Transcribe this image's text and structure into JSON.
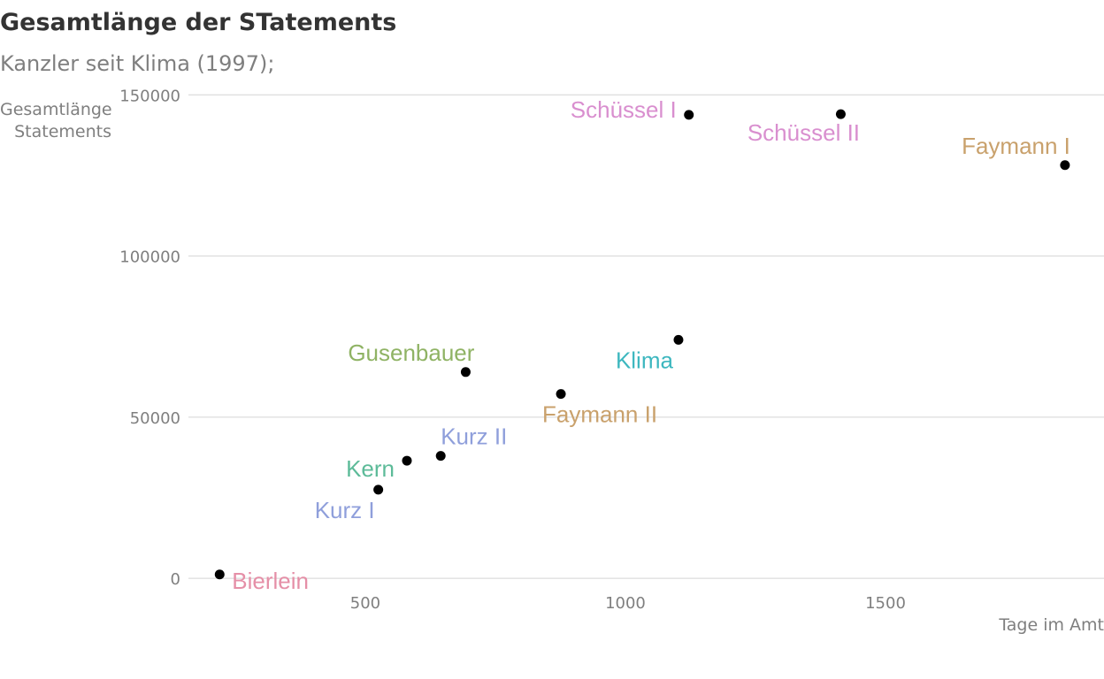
{
  "chart_data": {
    "type": "scatter",
    "title": "Gesamtlänge der STatements",
    "subtitle": "Kanzler seit Klima (1997);",
    "xlabel": "Tage im Amt",
    "ylabel": "Gesamtlänge Statements",
    "xlim": [
      160,
      1920
    ],
    "ylim": [
      -6000,
      152000
    ],
    "x_ticks": [
      500,
      1000,
      1500
    ],
    "y_ticks": [
      0,
      50000,
      100000,
      150000
    ],
    "grid": "horizontal",
    "legend": "none",
    "points": [
      {
        "label": "Bierlein",
        "x": 220,
        "y": 1200,
        "color": "#E58FA7",
        "anchor": "start",
        "dx": 14,
        "dy": 16
      },
      {
        "label": "Kurz I",
        "x": 525,
        "y": 27500,
        "color": "#8F9FDB",
        "anchor": "end",
        "dx": -4,
        "dy": 32
      },
      {
        "label": "Kern",
        "x": 580,
        "y": 36500,
        "color": "#5DBB99",
        "anchor": "end",
        "dx": -14,
        "dy": 18
      },
      {
        "label": "Kurz II",
        "x": 645,
        "y": 38000,
        "color": "#8F9FDB",
        "anchor": "start",
        "dx": 0,
        "dy": -13
      },
      {
        "label": "Gusenbauer",
        "x": 693,
        "y": 64000,
        "color": "#8FB364",
        "anchor": "end",
        "dx": 10,
        "dy": -13
      },
      {
        "label": "Faymann II",
        "x": 876,
        "y": 57200,
        "color": "#C9A16C",
        "anchor": "middle",
        "dx": 44,
        "dy": 32
      },
      {
        "label": "Klima",
        "x": 1102,
        "y": 74000,
        "color": "#3DB7BF",
        "anchor": "end",
        "dx": -6,
        "dy": 32
      },
      {
        "label": "Schüssel I",
        "x": 1122,
        "y": 143800,
        "color": "#D98FCF",
        "anchor": "end",
        "dx": -14,
        "dy": 3
      },
      {
        "label": "Schüssel II",
        "x": 1414,
        "y": 144000,
        "color": "#D98FCF",
        "anchor": "middle",
        "dx": -42,
        "dy": 30
      },
      {
        "label": "Faymann I",
        "x": 1845,
        "y": 128200,
        "color": "#C9A16C",
        "anchor": "end",
        "dx": 6,
        "dy": -13
      }
    ]
  }
}
